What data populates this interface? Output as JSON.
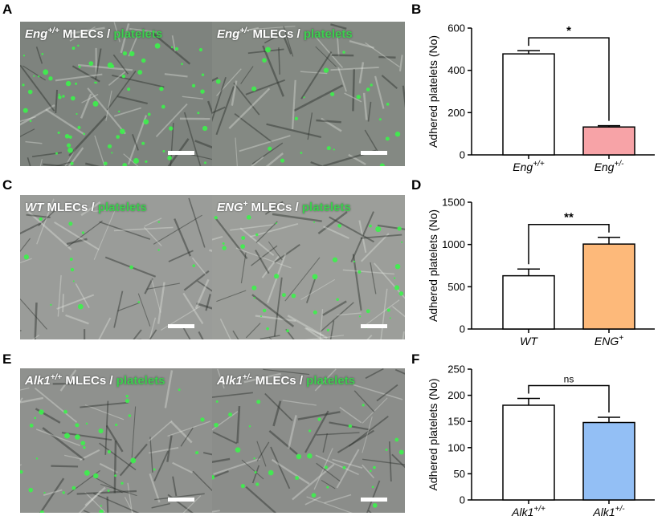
{
  "panels": [
    {
      "letter": "A"
    },
    {
      "letter": "B"
    },
    {
      "letter": "C"
    },
    {
      "letter": "D"
    },
    {
      "letter": "E"
    },
    {
      "letter": "F"
    }
  ],
  "images": [
    {
      "geno": "Eng",
      "sup": "+/+",
      "mid": " MLECs / ",
      "plt": "platelets",
      "tone": "#7e837e",
      "density": 70
    },
    {
      "geno": "Eng",
      "sup": "+/-",
      "mid": " MLECs / ",
      "plt": "platelets",
      "tone": "#848983",
      "density": 22
    },
    {
      "geno": "WT",
      "sup": "",
      "mid": " MLECs / ",
      "plt": "platelets",
      "tone": "#9a9c99",
      "density": 14
    },
    {
      "geno": "ENG",
      "sup": "+",
      "mid": " MLECs / ",
      "plt": "platelets",
      "tone": "#9c9e9a",
      "density": 40
    },
    {
      "geno": "Alk1",
      "sup": "+/+",
      "mid": " MLECs / ",
      "plt": "platelets",
      "tone": "#8f918e",
      "density": 35
    },
    {
      "geno": "Alk1",
      "sup": "+/-",
      "mid": " MLECs / ",
      "plt": "platelets",
      "tone": "#8b8d8a",
      "density": 30
    }
  ],
  "chart_data": [
    {
      "type": "bar",
      "ylabel": "Adhered platelets (No)",
      "ylim": [
        0,
        600
      ],
      "yticks": [
        "0",
        "200",
        "400",
        "600"
      ],
      "categories": [
        {
          "base": "Eng",
          "sup": "+/+"
        },
        {
          "base": "Eng",
          "sup": "+/-"
        }
      ],
      "values": [
        478,
        132
      ],
      "errors": [
        15,
        6
      ],
      "colors": [
        "#ffffff",
        "#f7a3a7"
      ],
      "significance": "*"
    },
    {
      "type": "bar",
      "ylabel": "Adhered platelets (No)",
      "ylim": [
        0,
        1500
      ],
      "yticks": [
        "0",
        "500",
        "1000",
        "1500"
      ],
      "categories": [
        {
          "base": "WT",
          "sup": ""
        },
        {
          "base": "ENG",
          "sup": "+"
        }
      ],
      "values": [
        630,
        1005
      ],
      "errors": [
        80,
        80
      ],
      "colors": [
        "#ffffff",
        "#fdb97a"
      ],
      "significance": "**"
    },
    {
      "type": "bar",
      "ylabel": "Adhered platelets (No)",
      "ylim": [
        0,
        250
      ],
      "yticks": [
        "0",
        "50",
        "100",
        "150",
        "200",
        "250"
      ],
      "categories": [
        {
          "base": "Alk1",
          "sup": "+/+"
        },
        {
          "base": "Alk1",
          "sup": "+/-"
        }
      ],
      "values": [
        181,
        148
      ],
      "errors": [
        13,
        10
      ],
      "colors": [
        "#ffffff",
        "#93bff5"
      ],
      "significance": "ns"
    }
  ]
}
